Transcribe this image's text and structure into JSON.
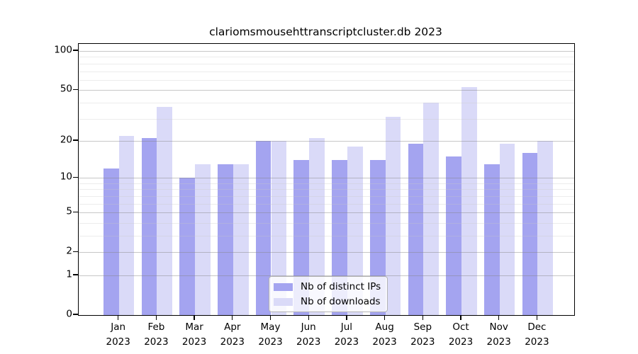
{
  "title": "clariomsmousehttranscriptcluster.db 2023",
  "legend": {
    "items": [
      {
        "label": "Nb of distinct IPs",
        "color": "#a4a4f0"
      },
      {
        "label": "Nb of downloads",
        "color": "#dadaf8"
      }
    ]
  },
  "colors": {
    "bar_dark": "#a4a4f0",
    "bar_light": "#dadaf8",
    "major_grid": "rgba(130,130,130,0.45)",
    "minor_grid": "rgba(200,200,200,0.35)",
    "axis": "#000000"
  },
  "chart_data": {
    "type": "bar",
    "title": "clariomsmousehttranscriptcluster.db 2023",
    "categories": [
      "Jan",
      "Feb",
      "Mar",
      "Apr",
      "May",
      "Jun",
      "Jul",
      "Aug",
      "Sep",
      "Oct",
      "Nov",
      "Dec"
    ],
    "year_label": "2023",
    "series": [
      {
        "name": "Nb of distinct IPs",
        "color": "#a4a4f0",
        "values": [
          12,
          21,
          10,
          13,
          20,
          14,
          14,
          14,
          19,
          15,
          13,
          16
        ]
      },
      {
        "name": "Nb of downloads",
        "color": "#dadaf8",
        "values": [
          22,
          37,
          13,
          13,
          20,
          21,
          18,
          31,
          40,
          53,
          19,
          20
        ]
      }
    ],
    "xlabel": "",
    "ylabel": "",
    "y_scale": "log1p",
    "ylim": [
      0,
      100
    ],
    "y_major_ticks": [
      0,
      1,
      2,
      5,
      10,
      20,
      50,
      100
    ],
    "y_minor_ticks": [
      3,
      4,
      6,
      7,
      8,
      9,
      30,
      40,
      60,
      70,
      80,
      90
    ],
    "grid": true,
    "legend_position": "bottom-center-inside"
  }
}
